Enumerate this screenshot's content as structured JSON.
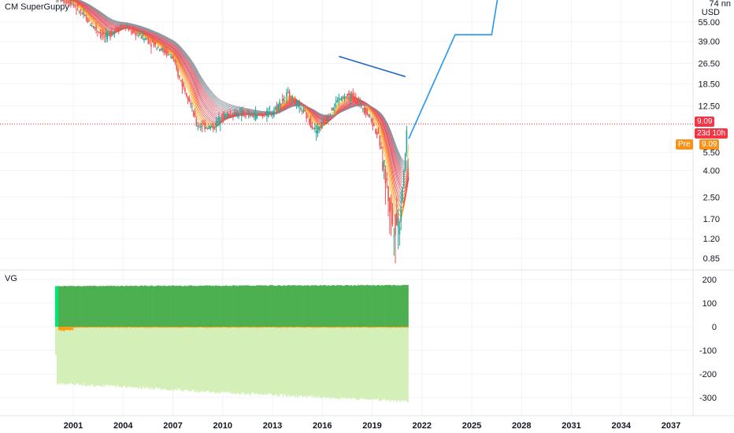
{
  "indicator_main": "CM SuperGuppy",
  "indicator_sub": "VG",
  "currency": "USD",
  "tags": {
    "last_price": "9.09",
    "countdown": "23d 10h",
    "pre_label": "Pre",
    "pre_price": "9.09"
  },
  "colors": {
    "price_line": "#f23645",
    "pre_tag": "#f7931a",
    "projection": "#2196f3",
    "trend_line": "#1e63c5",
    "vg_dark": "#4caf50",
    "vg_light": "#d4f0b8",
    "vg_cyan": "#00e676",
    "vg_orange": "#ff9800"
  },
  "chart_data": [
    {
      "type": "line",
      "title": "CM SuperGuppy",
      "y_scale": "log",
      "y_unit": "USD",
      "x_ticks": [
        "2001",
        "2004",
        "2007",
        "2010",
        "2013",
        "2016",
        "2019",
        "2022",
        "2025",
        "2028",
        "2031",
        "2034",
        "2037"
      ],
      "y_ticks": [
        0.85,
        1.2,
        1.7,
        2.5,
        4.0,
        5.5,
        12.5,
        18.5,
        26.5,
        39.0,
        55.0
      ],
      "y_ticks_text": [
        "0.85",
        "1.20",
        "1.70",
        "2.50",
        "4.00",
        "5.50",
        "12.50",
        "18.50",
        "26.50",
        "39.00",
        "55.00"
      ],
      "y_top_tick_partial": "74 nn",
      "last_price": 9.09,
      "series": [
        {
          "x": [
            2000.0,
            2001.0,
            2002.0,
            2003.0,
            2004.0,
            2005.0,
            2006.0,
            2007.0,
            2007.5,
            2008.0,
            2008.5,
            2009.5,
            2010.0,
            2011.0,
            2012.0,
            2013.0,
            2014.0,
            2015.0,
            2015.7,
            2016.3,
            2017.0,
            2017.8,
            2018.5,
            2019.0,
            2019.5,
            2019.9,
            2020.3,
            2020.7,
            2021.0,
            2021.2
          ],
          "values": [
            85,
            78,
            55,
            42,
            52,
            44,
            37,
            30,
            20,
            15,
            9,
            8.5,
            10.5,
            11,
            10.5,
            11,
            15.5,
            11,
            8,
            10,
            14,
            15,
            12.5,
            10,
            7,
            3.5,
            1.6,
            1.6,
            4,
            9.1
          ]
        },
        {
          "x": [
            2021.2,
            2024.0,
            2026.2,
            2026.6
          ],
          "values": [
            7,
            44,
            44,
            90
          ]
        },
        {
          "x": [
            2017.0,
            2021.0
          ],
          "values": [
            30,
            21
          ]
        }
      ]
    },
    {
      "type": "area",
      "title": "VG",
      "y_ticks": [
        200,
        100,
        0,
        -100,
        -200,
        -300
      ],
      "y_ticks_text": [
        "200",
        "100",
        "0",
        "-100",
        "-200",
        "-300"
      ],
      "series": [
        {
          "x": [
            2000.0,
            2021.2
          ],
          "values": [
            172,
            176
          ]
        },
        {
          "x": [
            2000.0,
            2003.0,
            2006.0,
            2009.0,
            2012.0,
            2015.0,
            2018.0,
            2021.2
          ],
          "values": [
            -240,
            -250,
            -262,
            -274,
            -285,
            -296,
            -306,
            -316
          ]
        }
      ]
    }
  ]
}
